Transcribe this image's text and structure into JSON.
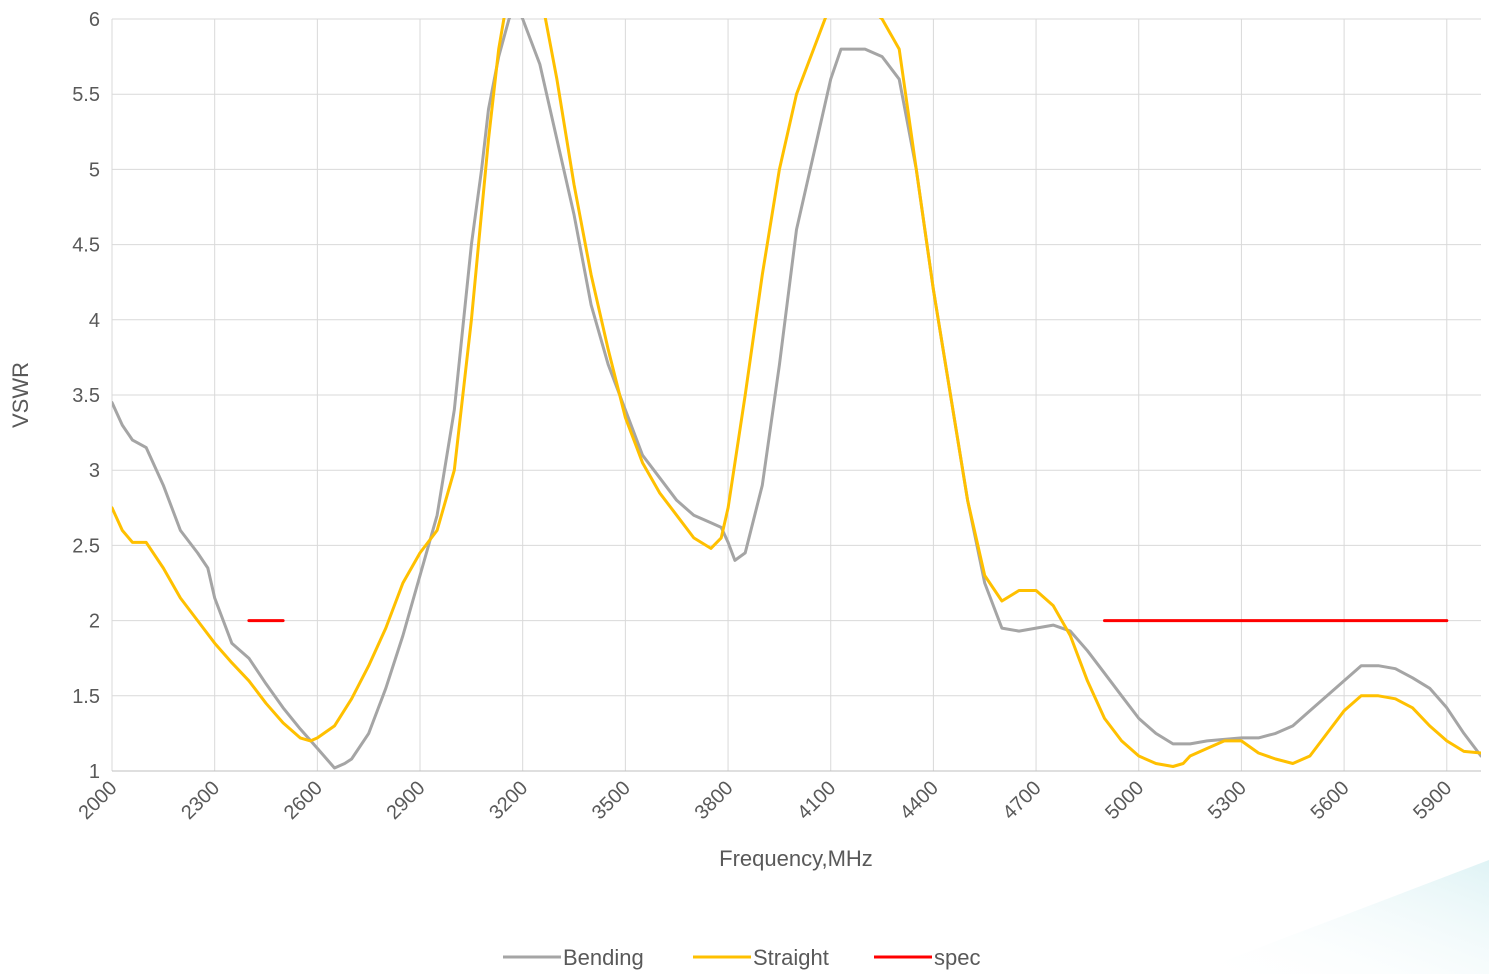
{
  "chart_data": {
    "type": "line",
    "xlabel": "Frequency,MHz",
    "ylabel": "VSWR",
    "xlim": [
      2000,
      6000
    ],
    "ylim": [
      1,
      6
    ],
    "x_ticks": [
      2000,
      2300,
      2600,
      2900,
      3200,
      3500,
      3800,
      4100,
      4400,
      4700,
      5000,
      5300,
      5600,
      5900
    ],
    "y_ticks": [
      "1",
      "1.5",
      "2",
      "2.5",
      "3",
      "3.5",
      "4",
      "4.5",
      "5",
      "5.5",
      "6"
    ],
    "grid": true,
    "legend_position": "bottom",
    "series": [
      {
        "name": "Bending",
        "color": "#a5a5a5",
        "x": [
          2000,
          2030,
          2060,
          2100,
          2150,
          2200,
          2250,
          2280,
          2300,
          2350,
          2400,
          2450,
          2500,
          2550,
          2600,
          2650,
          2680,
          2700,
          2750,
          2800,
          2850,
          2900,
          2950,
          3000,
          3050,
          3080,
          3100,
          3130,
          3160,
          3180,
          3200,
          3250,
          3300,
          3350,
          3400,
          3450,
          3500,
          3550,
          3600,
          3650,
          3700,
          3750,
          3780,
          3800,
          3820,
          3850,
          3900,
          3950,
          4000,
          4050,
          4100,
          4130,
          4160,
          4200,
          4250,
          4300,
          4350,
          4400,
          4450,
          4500,
          4550,
          4600,
          4650,
          4700,
          4750,
          4800,
          4850,
          4900,
          4950,
          5000,
          5050,
          5100,
          5150,
          5200,
          5250,
          5300,
          5350,
          5400,
          5450,
          5500,
          5550,
          5600,
          5650,
          5700,
          5750,
          5800,
          5850,
          5900,
          5950,
          6000
        ],
        "values": [
          3.45,
          3.3,
          3.2,
          3.15,
          2.9,
          2.6,
          2.45,
          2.35,
          2.15,
          1.85,
          1.75,
          1.58,
          1.42,
          1.28,
          1.15,
          1.02,
          1.05,
          1.08,
          1.25,
          1.55,
          1.9,
          2.3,
          2.7,
          3.4,
          4.5,
          5.0,
          5.4,
          5.75,
          6.0,
          6.1,
          6.0,
          5.7,
          5.2,
          4.7,
          4.1,
          3.7,
          3.4,
          3.1,
          2.95,
          2.8,
          2.7,
          2.65,
          2.62,
          2.52,
          2.4,
          2.45,
          2.9,
          3.7,
          4.6,
          5.1,
          5.6,
          5.8,
          5.8,
          5.8,
          5.75,
          5.6,
          5.0,
          4.2,
          3.5,
          2.8,
          2.25,
          1.95,
          1.93,
          1.95,
          1.97,
          1.93,
          1.8,
          1.65,
          1.5,
          1.35,
          1.25,
          1.18,
          1.18,
          1.2,
          1.21,
          1.22,
          1.22,
          1.25,
          1.3,
          1.4,
          1.5,
          1.6,
          1.7,
          1.7,
          1.68,
          1.62,
          1.55,
          1.42,
          1.25,
          1.1
        ]
      },
      {
        "name": "Straight",
        "color": "#ffc000",
        "x": [
          2000,
          2030,
          2060,
          2100,
          2150,
          2200,
          2250,
          2300,
          2350,
          2400,
          2450,
          2500,
          2550,
          2580,
          2600,
          2650,
          2700,
          2750,
          2800,
          2850,
          2900,
          2950,
          3000,
          3050,
          3100,
          3130,
          3160,
          3200,
          3250,
          3300,
          3350,
          3400,
          3450,
          3500,
          3550,
          3600,
          3650,
          3700,
          3750,
          3780,
          3800,
          3850,
          3900,
          3950,
          4000,
          4050,
          4100,
          4130,
          4160,
          4200,
          4250,
          4300,
          4350,
          4400,
          4450,
          4500,
          4550,
          4600,
          4650,
          4700,
          4750,
          4800,
          4850,
          4900,
          4950,
          5000,
          5050,
          5100,
          5130,
          5150,
          5200,
          5250,
          5300,
          5350,
          5400,
          5450,
          5500,
          5550,
          5600,
          5650,
          5700,
          5750,
          5800,
          5850,
          5900,
          5950,
          6000
        ],
        "values": [
          2.75,
          2.6,
          2.52,
          2.52,
          2.35,
          2.15,
          2.0,
          1.85,
          1.72,
          1.6,
          1.45,
          1.32,
          1.22,
          1.2,
          1.22,
          1.3,
          1.48,
          1.7,
          1.95,
          2.25,
          2.45,
          2.6,
          3.0,
          4.0,
          5.2,
          5.8,
          6.2,
          6.3,
          6.2,
          5.6,
          4.9,
          4.3,
          3.8,
          3.35,
          3.05,
          2.85,
          2.7,
          2.55,
          2.48,
          2.55,
          2.75,
          3.5,
          4.3,
          5.0,
          5.5,
          5.8,
          6.1,
          6.2,
          6.2,
          6.1,
          6.0,
          5.8,
          5.0,
          4.2,
          3.5,
          2.8,
          2.3,
          2.13,
          2.2,
          2.2,
          2.1,
          1.9,
          1.6,
          1.35,
          1.2,
          1.1,
          1.05,
          1.03,
          1.05,
          1.1,
          1.15,
          1.2,
          1.2,
          1.12,
          1.08,
          1.05,
          1.1,
          1.25,
          1.4,
          1.5,
          1.5,
          1.48,
          1.42,
          1.3,
          1.2,
          1.13,
          1.12
        ]
      },
      {
        "name": "spec",
        "color": "#ff0000",
        "segments": [
          {
            "x": [
              2400,
              2500
            ],
            "values": [
              2,
              2
            ]
          },
          {
            "x": [
              4900,
              5900
            ],
            "values": [
              2,
              2
            ]
          }
        ]
      }
    ]
  }
}
